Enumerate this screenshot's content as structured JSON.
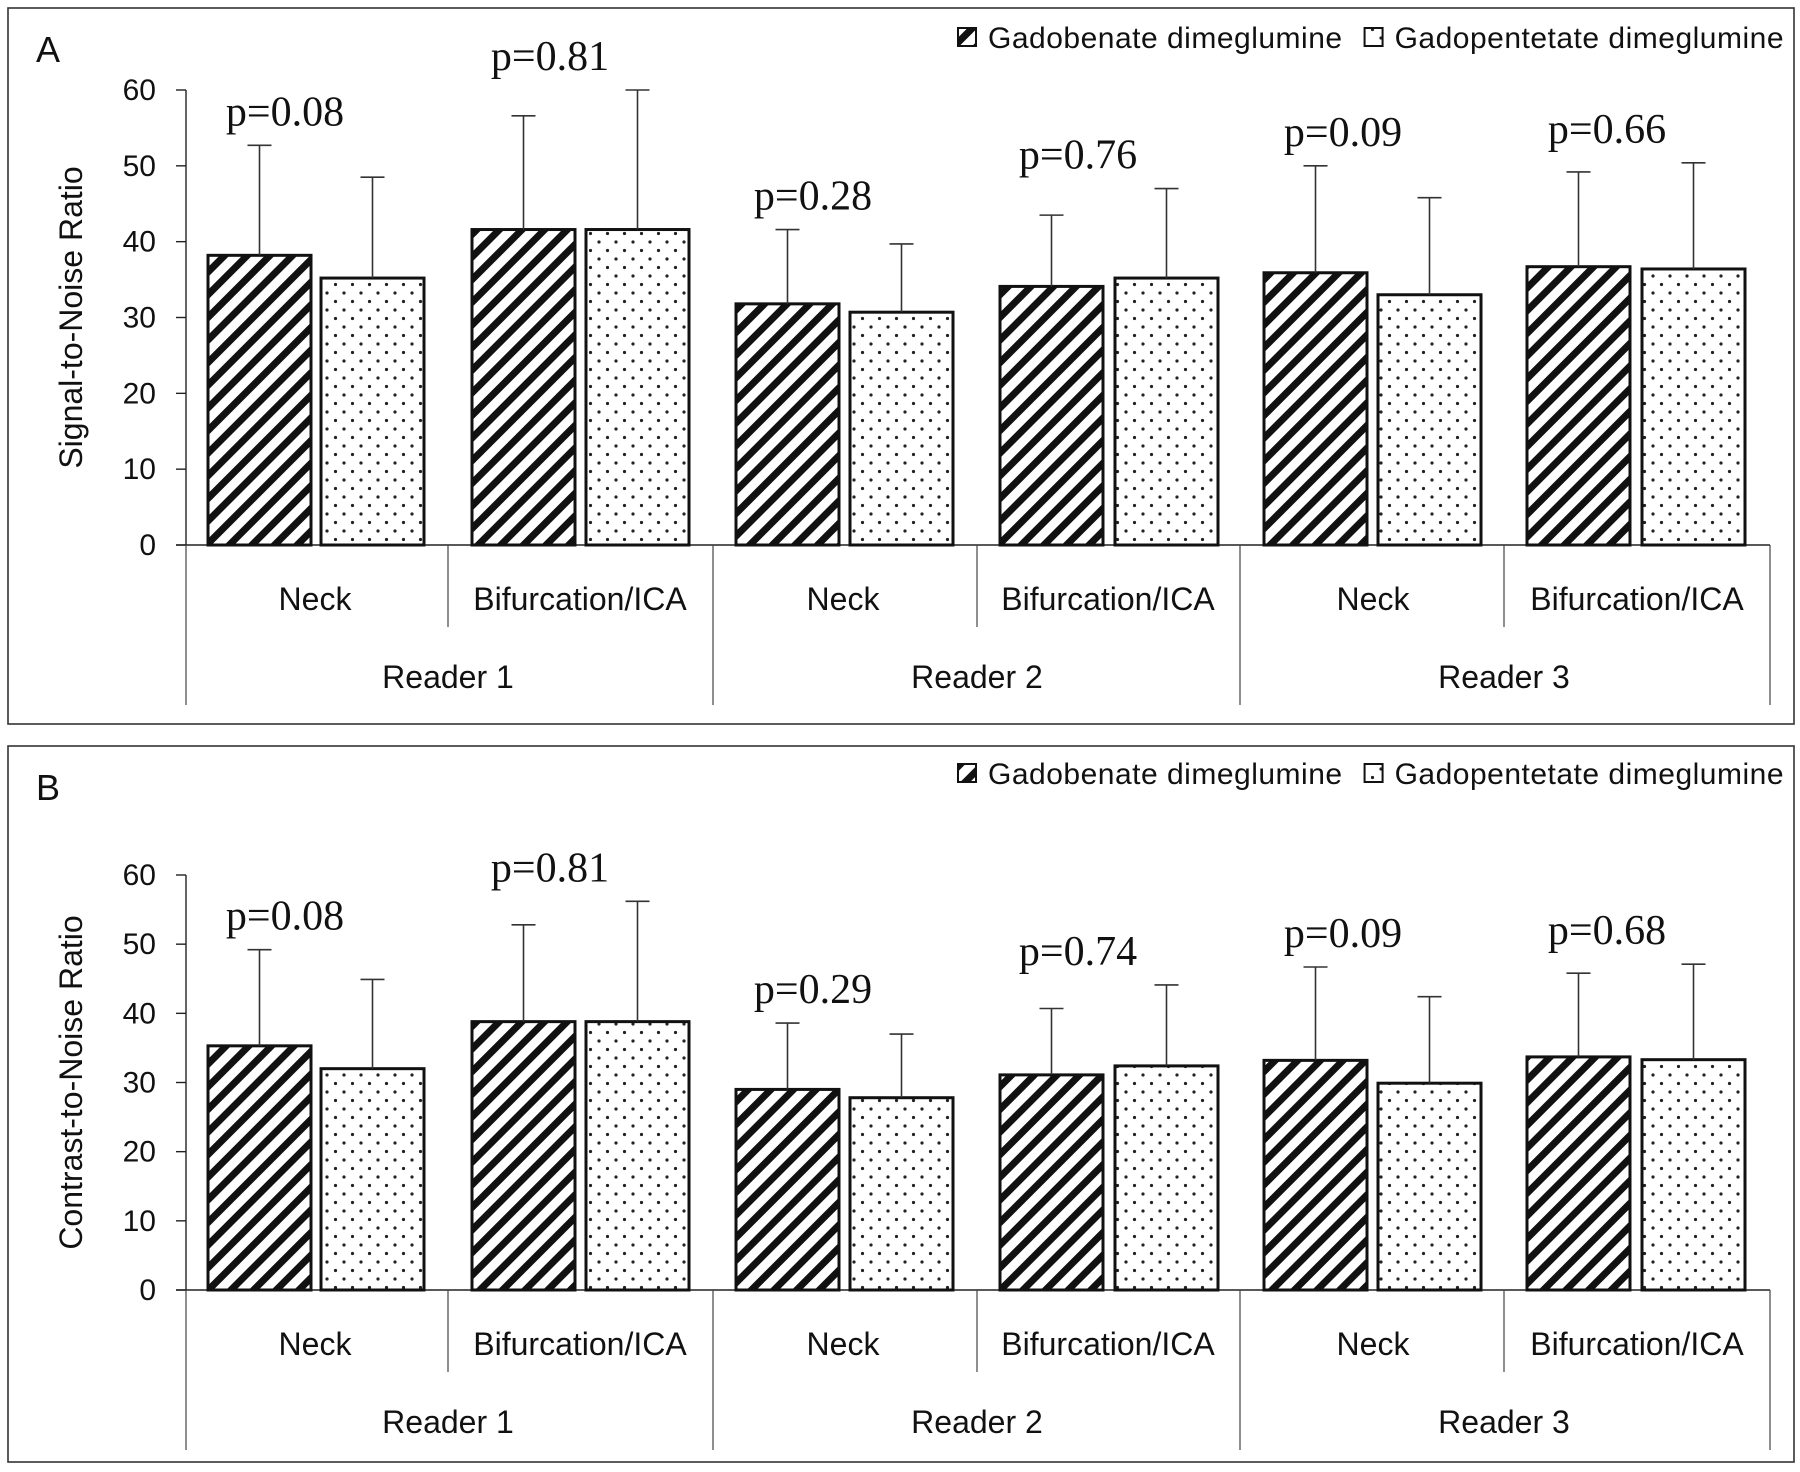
{
  "legend": {
    "series_a": "Gadobenate dimeglumine",
    "series_b": "Gadopentetate dimeglumine"
  },
  "chart_data": [
    {
      "type": "bar",
      "panel_label": "A",
      "ylabel": "Signal-to-Noise Ratio",
      "ylim": [
        0,
        60
      ],
      "yticks": [
        0,
        10,
        20,
        30,
        40,
        50,
        60
      ],
      "categories": [
        "Neck",
        "Bifurcation/ICA",
        "Neck",
        "Bifurcation/ICA",
        "Neck",
        "Bifurcation/ICA"
      ],
      "groups": [
        "Reader 1",
        "Reader 2",
        "Reader 3"
      ],
      "series": [
        {
          "name": "Gadobenate dimeglumine",
          "pattern": "hatch",
          "values": [
            38.2,
            41.6,
            31.8,
            34.1,
            35.9,
            36.7
          ],
          "error": [
            14.5,
            15.0,
            9.8,
            9.4,
            14.1,
            12.5
          ]
        },
        {
          "name": "Gadopentetate dimeglumine",
          "pattern": "dots",
          "values": [
            35.2,
            41.6,
            30.7,
            35.2,
            33.0,
            36.4
          ],
          "error": [
            13.3,
            18.4,
            9.0,
            11.8,
            12.8,
            14.0
          ]
        }
      ],
      "p_values": [
        "p=0.08",
        "p=0.81",
        "p=0.28",
        "p=0.76",
        "p=0.09",
        "p=0.66"
      ],
      "grid": false,
      "legend_position": "top-right"
    },
    {
      "type": "bar",
      "panel_label": "B",
      "ylabel": "Contrast-to-Noise Ratio",
      "ylim": [
        0,
        60
      ],
      "yticks": [
        0,
        10,
        20,
        30,
        40,
        50,
        60
      ],
      "categories": [
        "Neck",
        "Bifurcation/ICA",
        "Neck",
        "Bifurcation/ICA",
        "Neck",
        "Bifurcation/ICA"
      ],
      "groups": [
        "Reader 1",
        "Reader 2",
        "Reader 3"
      ],
      "series": [
        {
          "name": "Gadobenate dimeglumine",
          "pattern": "hatch",
          "values": [
            35.3,
            38.8,
            29.0,
            31.1,
            33.2,
            33.7
          ],
          "error": [
            13.9,
            14.0,
            9.6,
            9.6,
            13.5,
            12.1
          ]
        },
        {
          "name": "Gadopentetate dimeglumine",
          "pattern": "dots",
          "values": [
            32.0,
            38.8,
            27.8,
            32.4,
            29.9,
            33.3
          ],
          "error": [
            12.9,
            17.4,
            9.2,
            11.7,
            12.5,
            13.8
          ]
        }
      ],
      "p_values": [
        "p=0.08",
        "p=0.81",
        "p=0.29",
        "p=0.74",
        "p=0.09",
        "p=0.68"
      ],
      "grid": false,
      "legend_position": "top-right"
    }
  ]
}
